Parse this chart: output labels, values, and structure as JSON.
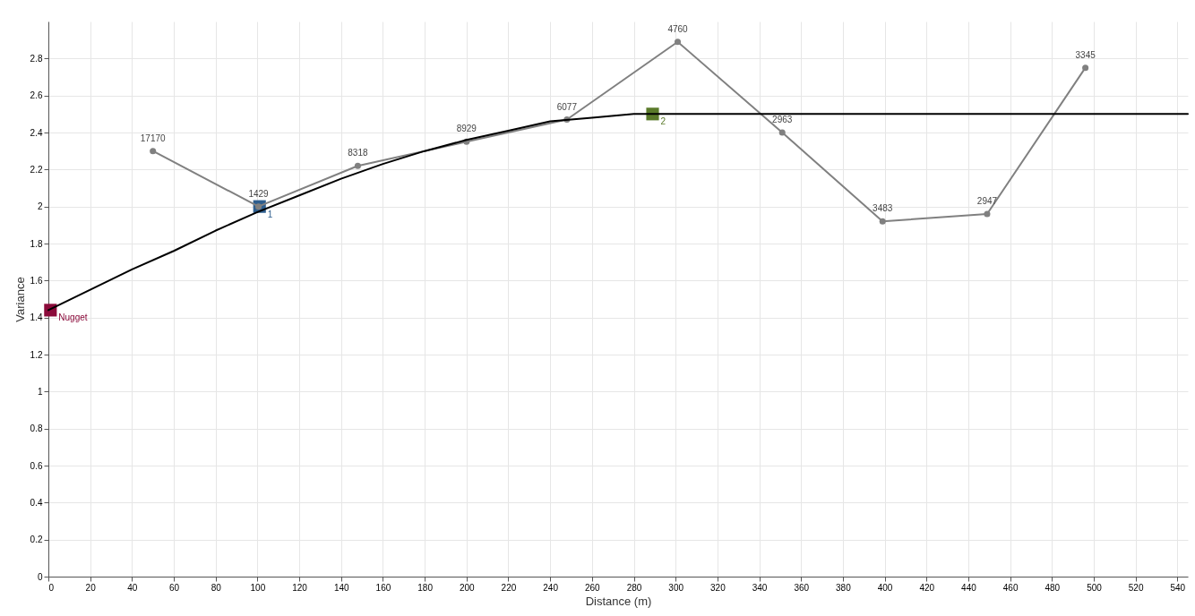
{
  "chart_data": {
    "type": "line",
    "xlabel": "Distance (m)",
    "ylabel": "Variance",
    "xlim": [
      0,
      545
    ],
    "xticks": [
      0,
      20,
      40,
      60,
      80,
      100,
      120,
      140,
      160,
      180,
      200,
      220,
      240,
      260,
      280,
      300,
      320,
      340,
      360,
      380,
      400,
      420,
      440,
      460,
      480,
      500,
      520,
      540
    ],
    "ylim": [
      0,
      3
    ],
    "yticks": [
      0,
      0.2,
      0.4,
      0.6,
      0.8,
      1,
      1.2,
      1.4,
      1.6,
      1.8,
      2,
      2.2,
      2.4,
      2.6,
      2.8
    ],
    "grid": true,
    "series": [
      {
        "color": "#808080",
        "marker": "circle",
        "x": [
          50,
          100.5,
          148,
          200,
          248,
          301,
          351,
          399,
          449,
          496
        ],
        "values": [
          2.3,
          2.0,
          2.22,
          2.35,
          2.47,
          2.89,
          2.4,
          1.92,
          1.96,
          2.75
        ]
      },
      {
        "color": "#000000",
        "marker": "none",
        "x": [
          0,
          20,
          40,
          60,
          80,
          100,
          120,
          140,
          160,
          180,
          200,
          220,
          240,
          260,
          280,
          290,
          545
        ],
        "values": [
          1.44,
          1.55,
          1.66,
          1.76,
          1.87,
          1.97,
          2.06,
          2.15,
          2.23,
          2.3,
          2.36,
          2.41,
          2.46,
          2.48,
          2.5,
          2.5,
          2.5
        ]
      },
      {
        "type": "scatter",
        "marker": "square",
        "colors": [
          "#8b0a3a",
          "#2e5e8e",
          "#5a7a2a"
        ],
        "x": [
          1,
          101,
          289
        ],
        "values": [
          1.44,
          2.0,
          2.5
        ]
      }
    ],
    "annotations": [
      {
        "text": "17170",
        "x": 50,
        "y": 2.3
      },
      {
        "text": "1429",
        "x": 100.5,
        "y": 2.0
      },
      {
        "text": "8318",
        "x": 148,
        "y": 2.22
      },
      {
        "text": "8929",
        "x": 200,
        "y": 2.35
      },
      {
        "text": "6077",
        "x": 248,
        "y": 2.47
      },
      {
        "text": "4760",
        "x": 301,
        "y": 2.89
      },
      {
        "text": "2963",
        "x": 351,
        "y": 2.4
      },
      {
        "text": "3483",
        "x": 399,
        "y": 1.92
      },
      {
        "text": "2947",
        "x": 449,
        "y": 1.96
      },
      {
        "text": "3345",
        "x": 496,
        "y": 2.75
      },
      {
        "text": "Nugget",
        "x": 1,
        "y": 1.44
      },
      {
        "text": "1",
        "x": 101,
        "y": 2.0
      },
      {
        "text": "2",
        "x": 289,
        "y": 2.5
      }
    ]
  }
}
